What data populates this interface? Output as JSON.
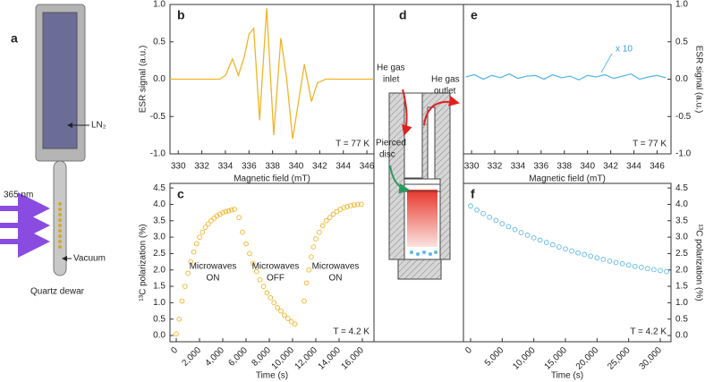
{
  "chart_data": [
    {
      "type": "line",
      "label": "b",
      "xlabel": "Magnetic field (mT)",
      "ylabel": "ESR signal (a.u.)",
      "temperature_label": "T = 77 K",
      "x": [
        329.3,
        333.5,
        334.0,
        334.6,
        335.1,
        335.6,
        336.0,
        336.4,
        336.9,
        337.5,
        338.1,
        338.7,
        339.2,
        339.7,
        340.2,
        340.7,
        341.3,
        341.8,
        342.5,
        346.6
      ],
      "series": [
        {
          "color": "#f0b429",
          "values": [
            0,
            0,
            0.05,
            0.27,
            0.05,
            0.3,
            0.6,
            0.68,
            -0.55,
            0.95,
            -0.75,
            0.55,
            0.0,
            -0.8,
            -0.3,
            0.2,
            -0.3,
            -0.05,
            0,
            0
          ]
        }
      ],
      "xlim": [
        329.3,
        346.6
      ],
      "ylim": [
        -1,
        1
      ],
      "xticks": [
        330,
        332,
        334,
        336,
        338,
        340,
        342,
        344,
        346
      ],
      "yticks": [
        {
          "value": -1,
          "label": "-1.0"
        },
        -0.5,
        {
          "value": 0,
          "label": "0.0"
        },
        0.5,
        {
          "value": 1,
          "label": "1.0"
        }
      ]
    },
    {
      "type": "scatter",
      "label": "c",
      "xlabel": "Time (s)",
      "ylabel": "¹³C polarization (%)",
      "temperature_label": "T = 4.2 K",
      "annotations": [
        [
          "Microwaves",
          "ON"
        ],
        [
          "Microwaves",
          "OFF"
        ],
        [
          "Microwaves",
          "ON"
        ]
      ],
      "x": [
        0,
        250,
        500,
        750,
        1000,
        1250,
        1500,
        1750,
        2000,
        2250,
        2500,
        2750,
        3000,
        3250,
        3500,
        3750,
        4000,
        4250,
        4500,
        4750,
        5000,
        5400,
        5700,
        6000,
        6300,
        6600,
        6900,
        7200,
        7500,
        7800,
        8100,
        8400,
        8700,
        9000,
        9300,
        9600,
        9900,
        10200,
        11000,
        11200,
        11400,
        11600,
        11800,
        12000,
        12300,
        12600,
        12900,
        13200,
        13500,
        13800,
        14100,
        14400,
        14700,
        15000,
        15300,
        15600,
        15900
      ],
      "series": [
        {
          "color": "#f0b429",
          "values": [
            0.05,
            0.5,
            1.05,
            1.5,
            1.9,
            2.25,
            2.55,
            2.8,
            3.0,
            3.15,
            3.3,
            3.4,
            3.5,
            3.58,
            3.65,
            3.7,
            3.75,
            3.78,
            3.8,
            3.83,
            3.85,
            3.6,
            3.15,
            2.8,
            2.5,
            2.2,
            1.95,
            1.7,
            1.5,
            1.3,
            1.15,
            1.0,
            0.85,
            0.75,
            0.62,
            0.52,
            0.42,
            0.35,
            1.05,
            1.6,
            2.0,
            2.4,
            2.7,
            2.95,
            3.15,
            3.35,
            3.5,
            3.6,
            3.7,
            3.78,
            3.85,
            3.9,
            3.93,
            3.96,
            3.98,
            4.0,
            4.0
          ]
        }
      ],
      "xlim": [
        -540,
        17000
      ],
      "ylim": [
        -0.19,
        4.64
      ],
      "xticks": [
        0,
        {
          "value": 2000,
          "label": "2,000"
        },
        {
          "value": 4000,
          "label": "4,000"
        },
        {
          "value": 6000,
          "label": "6,000"
        },
        {
          "value": 8000,
          "label": "8,000"
        },
        {
          "value": 10000,
          "label": "10,000"
        },
        {
          "value": 12000,
          "label": "12,000"
        },
        {
          "value": 14000,
          "label": "14,000"
        },
        {
          "value": 16000,
          "label": "16,000"
        }
      ],
      "yticks": [
        {
          "value": 0,
          "label": "0.0"
        },
        0.5,
        {
          "value": 1,
          "label": "1.0"
        },
        1.5,
        {
          "value": 2,
          "label": "2.0"
        },
        2.5,
        {
          "value": 3,
          "label": "3.0"
        },
        3.5,
        {
          "value": 4,
          "label": "4.0"
        },
        4.5
      ]
    },
    {
      "type": "line",
      "label": "e",
      "xlabel": "Magnetic field (mT)",
      "ylabel": "ESR signal (a.u.)",
      "temperature_label": "T = 77 K",
      "annotation": "x 10",
      "x": [
        329.5,
        330.25,
        331,
        331.75,
        332.5,
        333.25,
        334,
        334.75,
        335.5,
        336.25,
        337,
        337.75,
        338.5,
        339.25,
        340,
        340.75,
        341.5,
        342.25,
        343,
        343.75,
        344.5,
        345.25,
        346,
        346.75
      ],
      "series": [
        {
          "color": "#5bb8e8",
          "values": [
            0.03,
            0.06,
            0.0,
            0.05,
            0.02,
            0.07,
            0.01,
            0.04,
            0.05,
            0.0,
            0.06,
            0.02,
            0.04,
            -0.01,
            0.05,
            0.03,
            0.06,
            0.01,
            0.04,
            0.07,
            0.0,
            0.03,
            0.05,
            0.02
          ]
        }
      ],
      "xlim": [
        329.3,
        347.2
      ],
      "ylim": [
        -1,
        1
      ],
      "xticks": [
        330,
        332,
        334,
        336,
        338,
        340,
        342,
        344,
        346
      ],
      "yticks": [
        {
          "value": -1,
          "label": "-1.0"
        },
        -0.5,
        {
          "value": 0,
          "label": "0.0"
        },
        0.5,
        {
          "value": 1,
          "label": "1.0"
        }
      ]
    },
    {
      "type": "scatter",
      "label": "f",
      "xlabel": "Time (s)",
      "ylabel": "¹³C polarization (%)",
      "temperature_label": "T = 4.2 K",
      "x": [
        0,
        1000,
        2000,
        3000,
        4000,
        5000,
        6000,
        7000,
        8000,
        9000,
        10000,
        11000,
        12000,
        13000,
        14000,
        15000,
        16000,
        17000,
        18000,
        19000,
        20000,
        21000,
        22000,
        23000,
        24000,
        25000,
        26000,
        27000,
        28000,
        29000,
        30000,
        31000
      ],
      "series": [
        {
          "color": "#5bb8e8",
          "values": [
            3.95,
            3.83,
            3.72,
            3.61,
            3.51,
            3.41,
            3.32,
            3.23,
            3.14,
            3.06,
            2.98,
            2.91,
            2.84,
            2.77,
            2.7,
            2.64,
            2.58,
            2.52,
            2.47,
            2.42,
            2.37,
            2.32,
            2.27,
            2.23,
            2.19,
            2.15,
            2.11,
            2.08,
            2.04,
            2.01,
            1.98,
            1.95
          ]
        }
      ],
      "xlim": [
        -1130,
        31700
      ],
      "ylim": [
        -0.19,
        4.64
      ],
      "xticks": [
        0,
        {
          "value": 5000,
          "label": "5,000"
        },
        {
          "value": 10000,
          "label": "10,000"
        },
        {
          "value": 15000,
          "label": "15,000"
        },
        {
          "value": 20000,
          "label": "20,000"
        },
        {
          "value": 25000,
          "label": "25,000"
        },
        {
          "value": 30000,
          "label": "30,000"
        }
      ],
      "yticks": [
        {
          "value": 0,
          "label": "0.0"
        },
        0.5,
        {
          "value": 1,
          "label": "1.0"
        },
        1.5,
        {
          "value": 2,
          "label": "2.0"
        },
        2.5,
        {
          "value": 3,
          "label": "3.0"
        },
        3.5,
        {
          "value": 4,
          "label": "4.0"
        },
        4.5
      ]
    }
  ],
  "diagrams": {
    "a": {
      "label": "a",
      "ln2": "LN₂",
      "wavelength": "365 nm",
      "vacuum": "Vacuum",
      "caption": "Quartz dewar"
    },
    "d": {
      "label": "d",
      "inlet": [
        "He gas",
        "inlet"
      ],
      "outlet": [
        "He gas",
        "outlet"
      ],
      "disc": [
        "Pierced",
        "disc"
      ]
    }
  }
}
